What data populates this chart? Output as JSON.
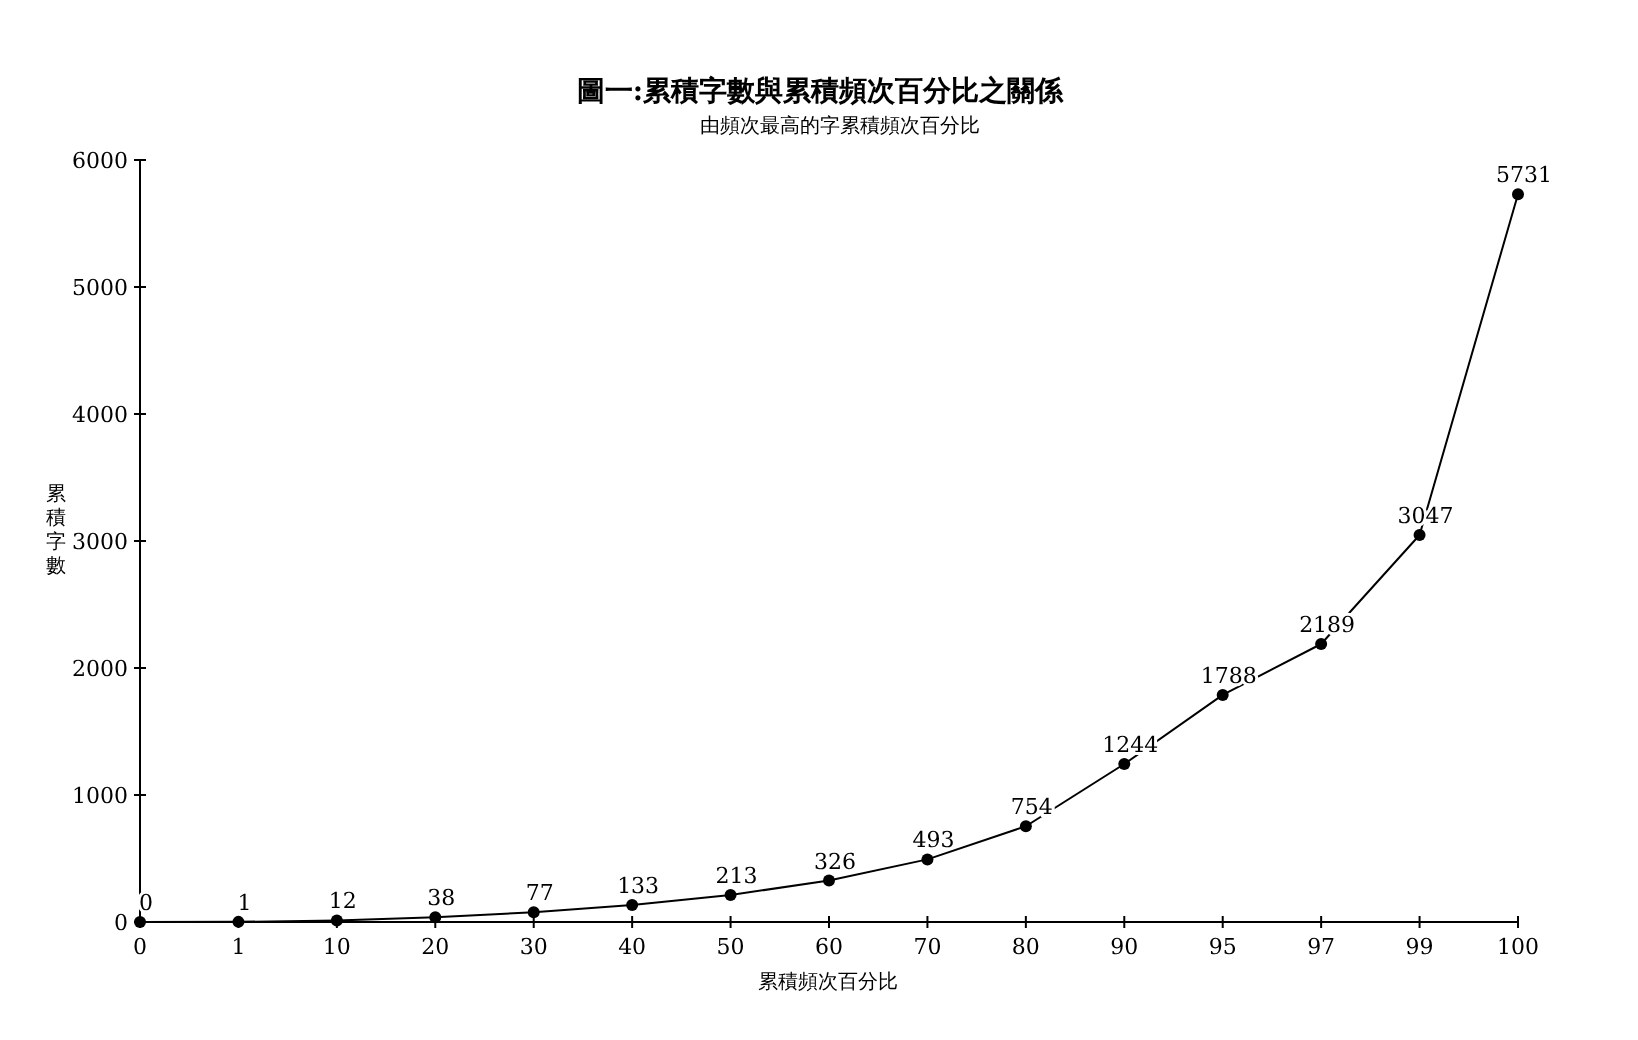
{
  "chart_data": {
    "type": "line",
    "title": "圖一:累積字數與累積頻次百分比之關係",
    "subtitle": "由頻次最高的字累積頻次百分比",
    "xlabel": "累積頻次百分比",
    "ylabel": "累積字數",
    "categories": [
      "0",
      "1",
      "10",
      "20",
      "30",
      "40",
      "50",
      "60",
      "70",
      "80",
      "90",
      "95",
      "97",
      "99",
      "100"
    ],
    "series": [
      {
        "color": "#000000",
        "values": [
          0,
          1,
          12,
          38,
          77,
          133,
          213,
          326,
          493,
          754,
          1244,
          1788,
          2189,
          3047,
          5731
        ]
      }
    ],
    "ylim": [
      0,
      6000
    ],
    "yticks": [
      0,
      1000,
      2000,
      3000,
      4000,
      5000,
      6000
    ],
    "data_labels": true,
    "marker": "circle",
    "line_style": "solid",
    "grid": false
  }
}
